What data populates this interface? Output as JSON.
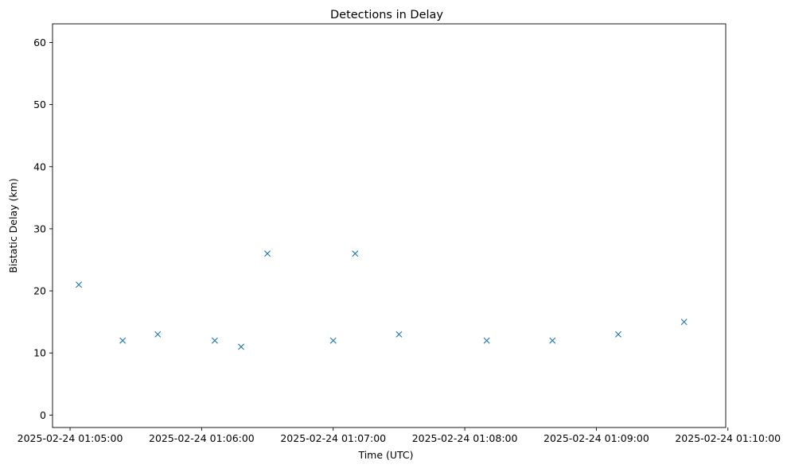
{
  "chart_data": {
    "type": "scatter",
    "title": "Detections in Delay",
    "xlabel": "Time (UTC)",
    "ylabel": "Bistatic Delay (km)",
    "marker": "x",
    "color": "#1f77b4",
    "grid": false,
    "legend": "none",
    "xlim": [
      "2025-02-24 01:04:52",
      "2025-02-24 01:09:59"
    ],
    "ylim": [
      -2,
      63
    ],
    "x_ticks": [
      "2025-02-24 01:05:00",
      "2025-02-24 01:06:00",
      "2025-02-24 01:07:00",
      "2025-02-24 01:08:00",
      "2025-02-24 01:09:00",
      "2025-02-24 01:10:00"
    ],
    "y_ticks": [
      "0",
      "10",
      "20",
      "30",
      "40",
      "50",
      "60"
    ],
    "series": [
      {
        "points": [
          [
            "2025-02-24 01:05:04",
            21
          ],
          [
            "2025-02-24 01:05:24",
            12
          ],
          [
            "2025-02-24 01:05:40",
            13
          ],
          [
            "2025-02-24 01:06:06",
            12
          ],
          [
            "2025-02-24 01:06:18",
            11
          ],
          [
            "2025-02-24 01:07:00",
            12
          ],
          [
            "2025-02-24 01:07:30",
            13
          ],
          [
            "2025-02-24 01:08:10",
            12
          ],
          [
            "2025-02-24 01:08:40",
            12
          ],
          [
            "2025-02-24 01:09:10",
            13
          ],
          [
            "2025-02-24 01:09:40",
            15
          ],
          [
            "2025-02-24 01:06:30",
            26
          ],
          [
            "2025-02-24 01:07:10",
            26
          ]
        ]
      }
    ]
  }
}
